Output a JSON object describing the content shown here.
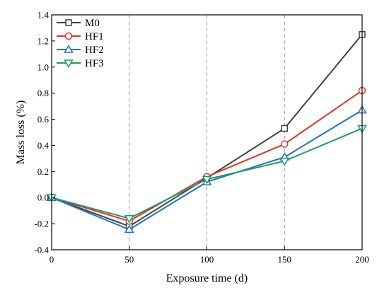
{
  "chart_data": {
    "type": "line",
    "title": "",
    "xlabel": "Exposure time (d)",
    "ylabel": "Mass loss (%)",
    "x": [
      0,
      50,
      100,
      150,
      200
    ],
    "xlim": [
      0,
      200
    ],
    "ylim": [
      -0.4,
      1.4
    ],
    "xticks": [
      "0",
      "50",
      "100",
      "150",
      "200"
    ],
    "yticks": [
      "-0.4",
      "-0.2",
      "0.0",
      "0.2",
      "0.4",
      "0.6",
      "0.8",
      "1.0",
      "1.2",
      "1.4"
    ],
    "grid": "vertical dashed",
    "legend_position": "top-left",
    "series": [
      {
        "name": "M0",
        "values": [
          0,
          -0.22,
          0.15,
          0.53,
          1.25
        ],
        "color": "#404040",
        "marker": "square"
      },
      {
        "name": "HF1",
        "values": [
          0,
          -0.18,
          0.16,
          0.41,
          0.82
        ],
        "color": "#e8302a",
        "marker": "circle"
      },
      {
        "name": "HF2",
        "values": [
          0,
          -0.245,
          0.12,
          0.31,
          0.67
        ],
        "color": "#1f6fd1",
        "marker": "triangle-up"
      },
      {
        "name": "HF3",
        "values": [
          0,
          -0.16,
          0.14,
          0.28,
          0.53
        ],
        "color": "#14a064",
        "marker": "triangle-down"
      }
    ]
  }
}
